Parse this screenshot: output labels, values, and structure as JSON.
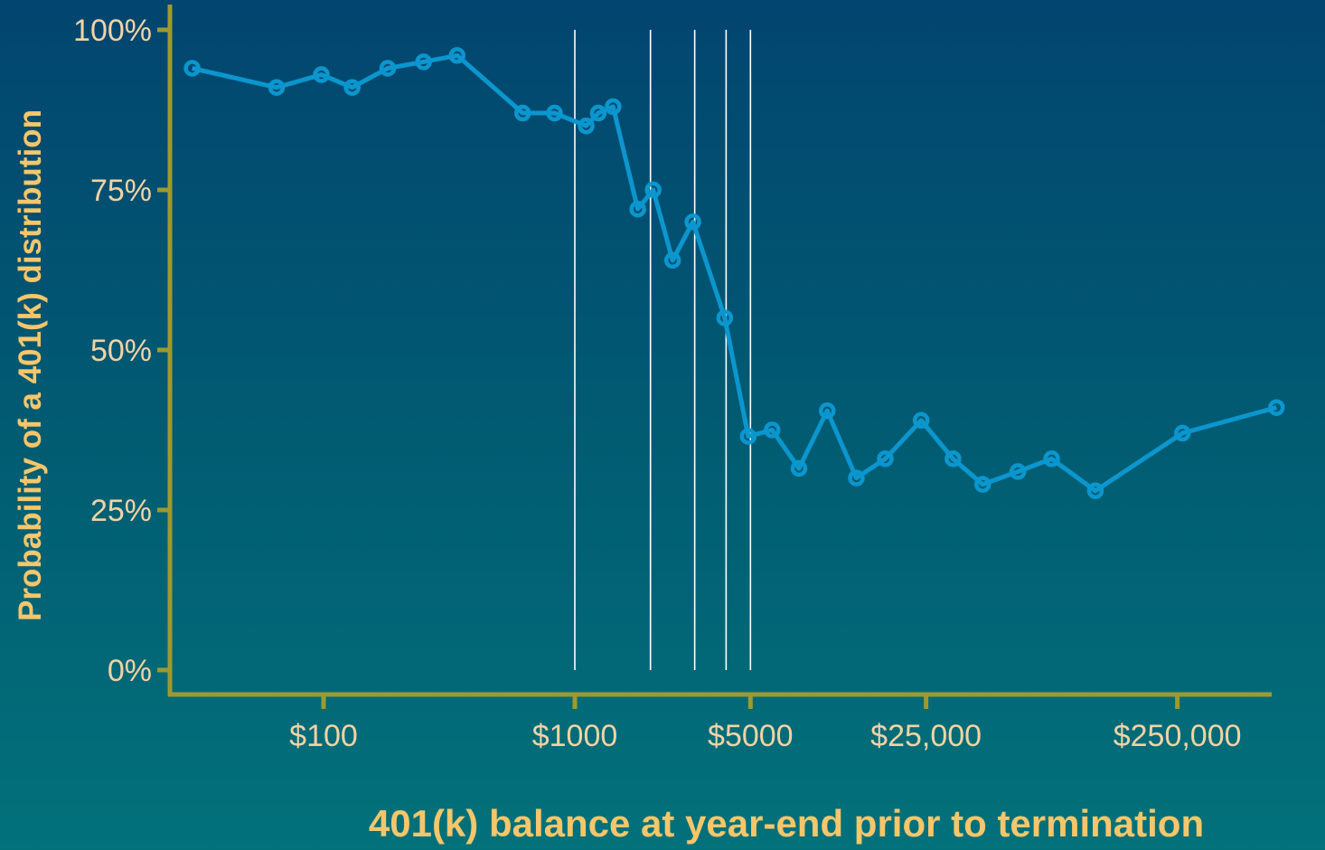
{
  "chart_data": {
    "type": "line",
    "xscale": "log",
    "xlabel": "401(k) balance at year-end prior to termination",
    "ylabel": "Probability of a 401(k) distribution",
    "ylim": [
      0,
      100
    ],
    "xlim": [
      18,
      900000
    ],
    "yticks": [
      {
        "value": 0,
        "label": "0%"
      },
      {
        "value": 25,
        "label": "25%"
      },
      {
        "value": 50,
        "label": "50%"
      },
      {
        "value": 75,
        "label": "75%"
      },
      {
        "value": 100,
        "label": "100%"
      }
    ],
    "xticks": [
      {
        "value": 100,
        "label": "$100"
      },
      {
        "value": 1000,
        "label": "$1000"
      },
      {
        "value": 5000,
        "label": "$5000"
      },
      {
        "value": 25000,
        "label": "$25,000"
      },
      {
        "value": 250000,
        "label": "$250,000"
      }
    ],
    "reference_lines_x": [
      1000,
      2000,
      3000,
      4000,
      5000
    ],
    "grid": false,
    "series": [
      {
        "x": [
          30,
          65,
          98,
          130,
          180,
          250,
          340,
          620,
          830,
          1110,
          1240,
          1420,
          1780,
          2050,
          2450,
          2950,
          3950,
          4900,
          6100,
          7800,
          10100,
          13200,
          17200,
          23900,
          32000,
          42000,
          58000,
          79000,
          118000,
          262000,
          620000
        ],
        "values": [
          94,
          91,
          93,
          91,
          94,
          95,
          96,
          87,
          87,
          85,
          87,
          88,
          72,
          75,
          64,
          70,
          55,
          36.5,
          37.5,
          31.5,
          40.5,
          30,
          33,
          39,
          33,
          29,
          31,
          33,
          28,
          37,
          41
        ]
      }
    ],
    "colors": {
      "line": "#0c96ce",
      "axis": "#9e9a30",
      "reference": "#ffffff"
    }
  }
}
